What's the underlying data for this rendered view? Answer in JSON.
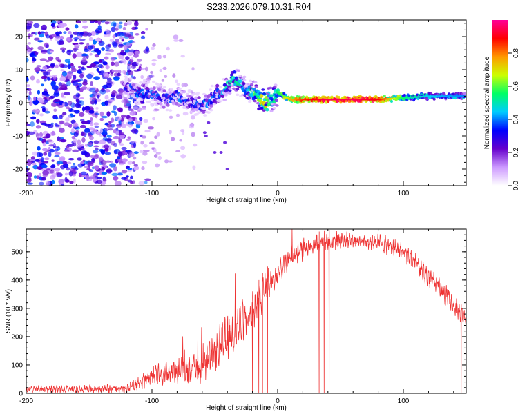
{
  "title": "S233.2026.079.10.31.R04",
  "chart_data": [
    {
      "type": "heatmap",
      "title": "S233.2026.079.10.31.R04",
      "xlabel": "Height of straight line (km)",
      "ylabel": "Frequency (Hz)",
      "xlim": [
        -200,
        150
      ],
      "ylim": [
        -25,
        25
      ],
      "xticks": [
        -200,
        -100,
        0,
        100
      ],
      "yticks": [
        -20,
        -10,
        0,
        10,
        20
      ],
      "colorbar": {
        "label": "Normalized spectral amplitude",
        "range": [
          0,
          1
        ],
        "ticks": [
          0.0,
          0.2,
          0.4,
          0.6,
          0.8
        ],
        "tick_labels": [
          "0.0",
          "0.2",
          "0.4",
          "0.6",
          "0.8"
        ],
        "colors": [
          "#ffffff",
          "#cc99ff",
          "#6600cc",
          "#0000ff",
          "#00ccff",
          "#00ff66",
          "#ccff00",
          "#ff9900",
          "#ff0000",
          "#ff0099"
        ]
      },
      "ridge": {
        "x": [
          -120,
          -110,
          -100,
          -90,
          -80,
          -70,
          -60,
          -50,
          -40,
          -35,
          -30,
          -25,
          -20,
          -15,
          -10,
          -5,
          0,
          5,
          10,
          20,
          40,
          60,
          80,
          100,
          120,
          150
        ],
        "freq": [
          5,
          3,
          3,
          1,
          2,
          0,
          -1,
          2,
          5,
          7,
          6,
          4,
          3,
          2,
          0,
          1,
          3,
          2,
          1,
          1,
          1,
          1,
          1,
          1.5,
          2,
          2
        ],
        "amplitude": [
          0.25,
          0.4,
          0.35,
          0.3,
          0.35,
          0.3,
          0.35,
          0.35,
          0.45,
          0.5,
          0.45,
          0.4,
          0.5,
          0.6,
          0.7,
          0.5,
          0.55,
          0.6,
          0.75,
          0.85,
          0.95,
          0.95,
          0.9,
          0.55,
          0.45,
          0.4
        ]
      }
    },
    {
      "type": "line",
      "xlabel": "Height of straight line (km)",
      "ylabel": "SNR (10 * v/v)",
      "xlim": [
        -200,
        150
      ],
      "ylim": [
        0,
        580
      ],
      "xticks": [
        -200,
        -100,
        0,
        100
      ],
      "yticks": [
        0,
        100,
        200,
        300,
        400,
        500
      ],
      "color": "#ee3333",
      "envelope": {
        "x": [
          -200,
          -150,
          -120,
          -110,
          -100,
          -80,
          -60,
          -50,
          -40,
          -30,
          -20,
          -10,
          0,
          10,
          20,
          30,
          40,
          60,
          80,
          100,
          120,
          130,
          140,
          150
        ],
        "lower": [
          0,
          0,
          0,
          10,
          20,
          30,
          30,
          60,
          100,
          150,
          200,
          300,
          380,
          430,
          460,
          490,
          500,
          510,
          500,
          460,
          360,
          320,
          270,
          230
        ],
        "upper": [
          30,
          30,
          35,
          60,
          100,
          130,
          150,
          220,
          290,
          330,
          360,
          440,
          480,
          530,
          560,
          570,
          575,
          575,
          570,
          540,
          460,
          410,
          350,
          290
        ]
      },
      "dropouts_x": [
        -20,
        -15,
        -12,
        -8,
        33,
        37,
        41,
        146
      ]
    }
  ]
}
